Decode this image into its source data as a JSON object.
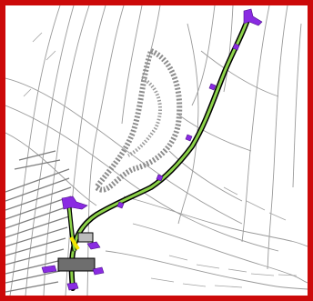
{
  "frame": {
    "border_color": "#cc0a0a"
  },
  "map": {
    "background_color": "#ffffff",
    "contour_color": "#9a9a9a",
    "dense_hatch_color": "#7d7d7d",
    "route_color": "#8dd34a",
    "route_outline_color": "#000000",
    "marker_color": "#8a2be2",
    "highlight_color": "#f4e300",
    "icons": [
      "contour-lines",
      "hatched-terrain",
      "route-line",
      "route-marker",
      "route-endpoint-marker",
      "structure-box"
    ]
  }
}
